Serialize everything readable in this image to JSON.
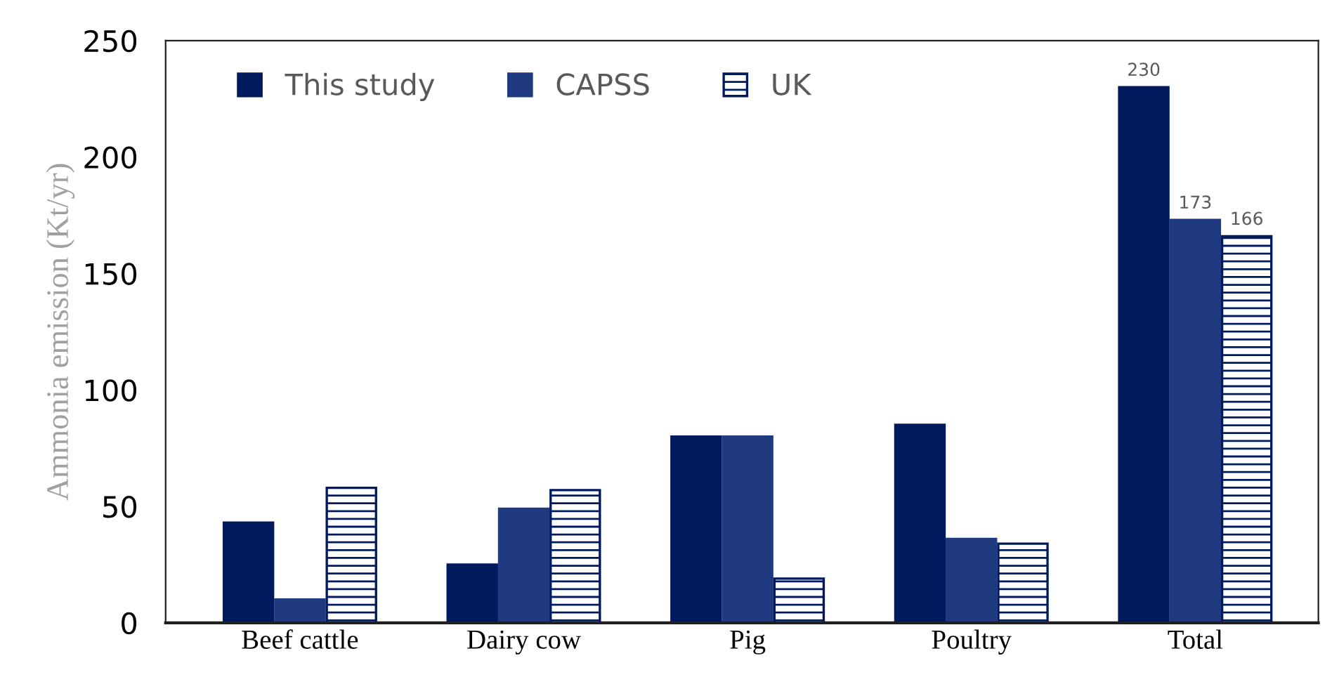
{
  "chart_data": {
    "type": "bar",
    "ylabel": "Ammonia emission (Kt/yr)",
    "categories": [
      "Beef cattle",
      "Dairy cow",
      "Pig",
      "Poultry",
      "Total"
    ],
    "series": [
      {
        "name": "This study",
        "color": "#001a5e",
        "values": [
          43,
          25,
          80,
          85,
          230
        ],
        "value_labels": [
          null,
          null,
          null,
          null,
          "230"
        ]
      },
      {
        "name": "CAPSS",
        "color": "#1f3a80",
        "values": [
          10,
          49,
          80,
          36,
          173
        ],
        "value_labels": [
          null,
          null,
          null,
          null,
          "173"
        ]
      },
      {
        "name": "UK",
        "color": "#001a5e",
        "values": [
          58,
          57,
          19,
          34,
          166
        ],
        "value_labels": [
          null,
          null,
          null,
          null,
          "166"
        ]
      }
    ],
    "ylim": [
      0,
      250
    ],
    "yticks": [
      0,
      50,
      100,
      150,
      200,
      250
    ],
    "grid": false,
    "legend": "top left"
  }
}
